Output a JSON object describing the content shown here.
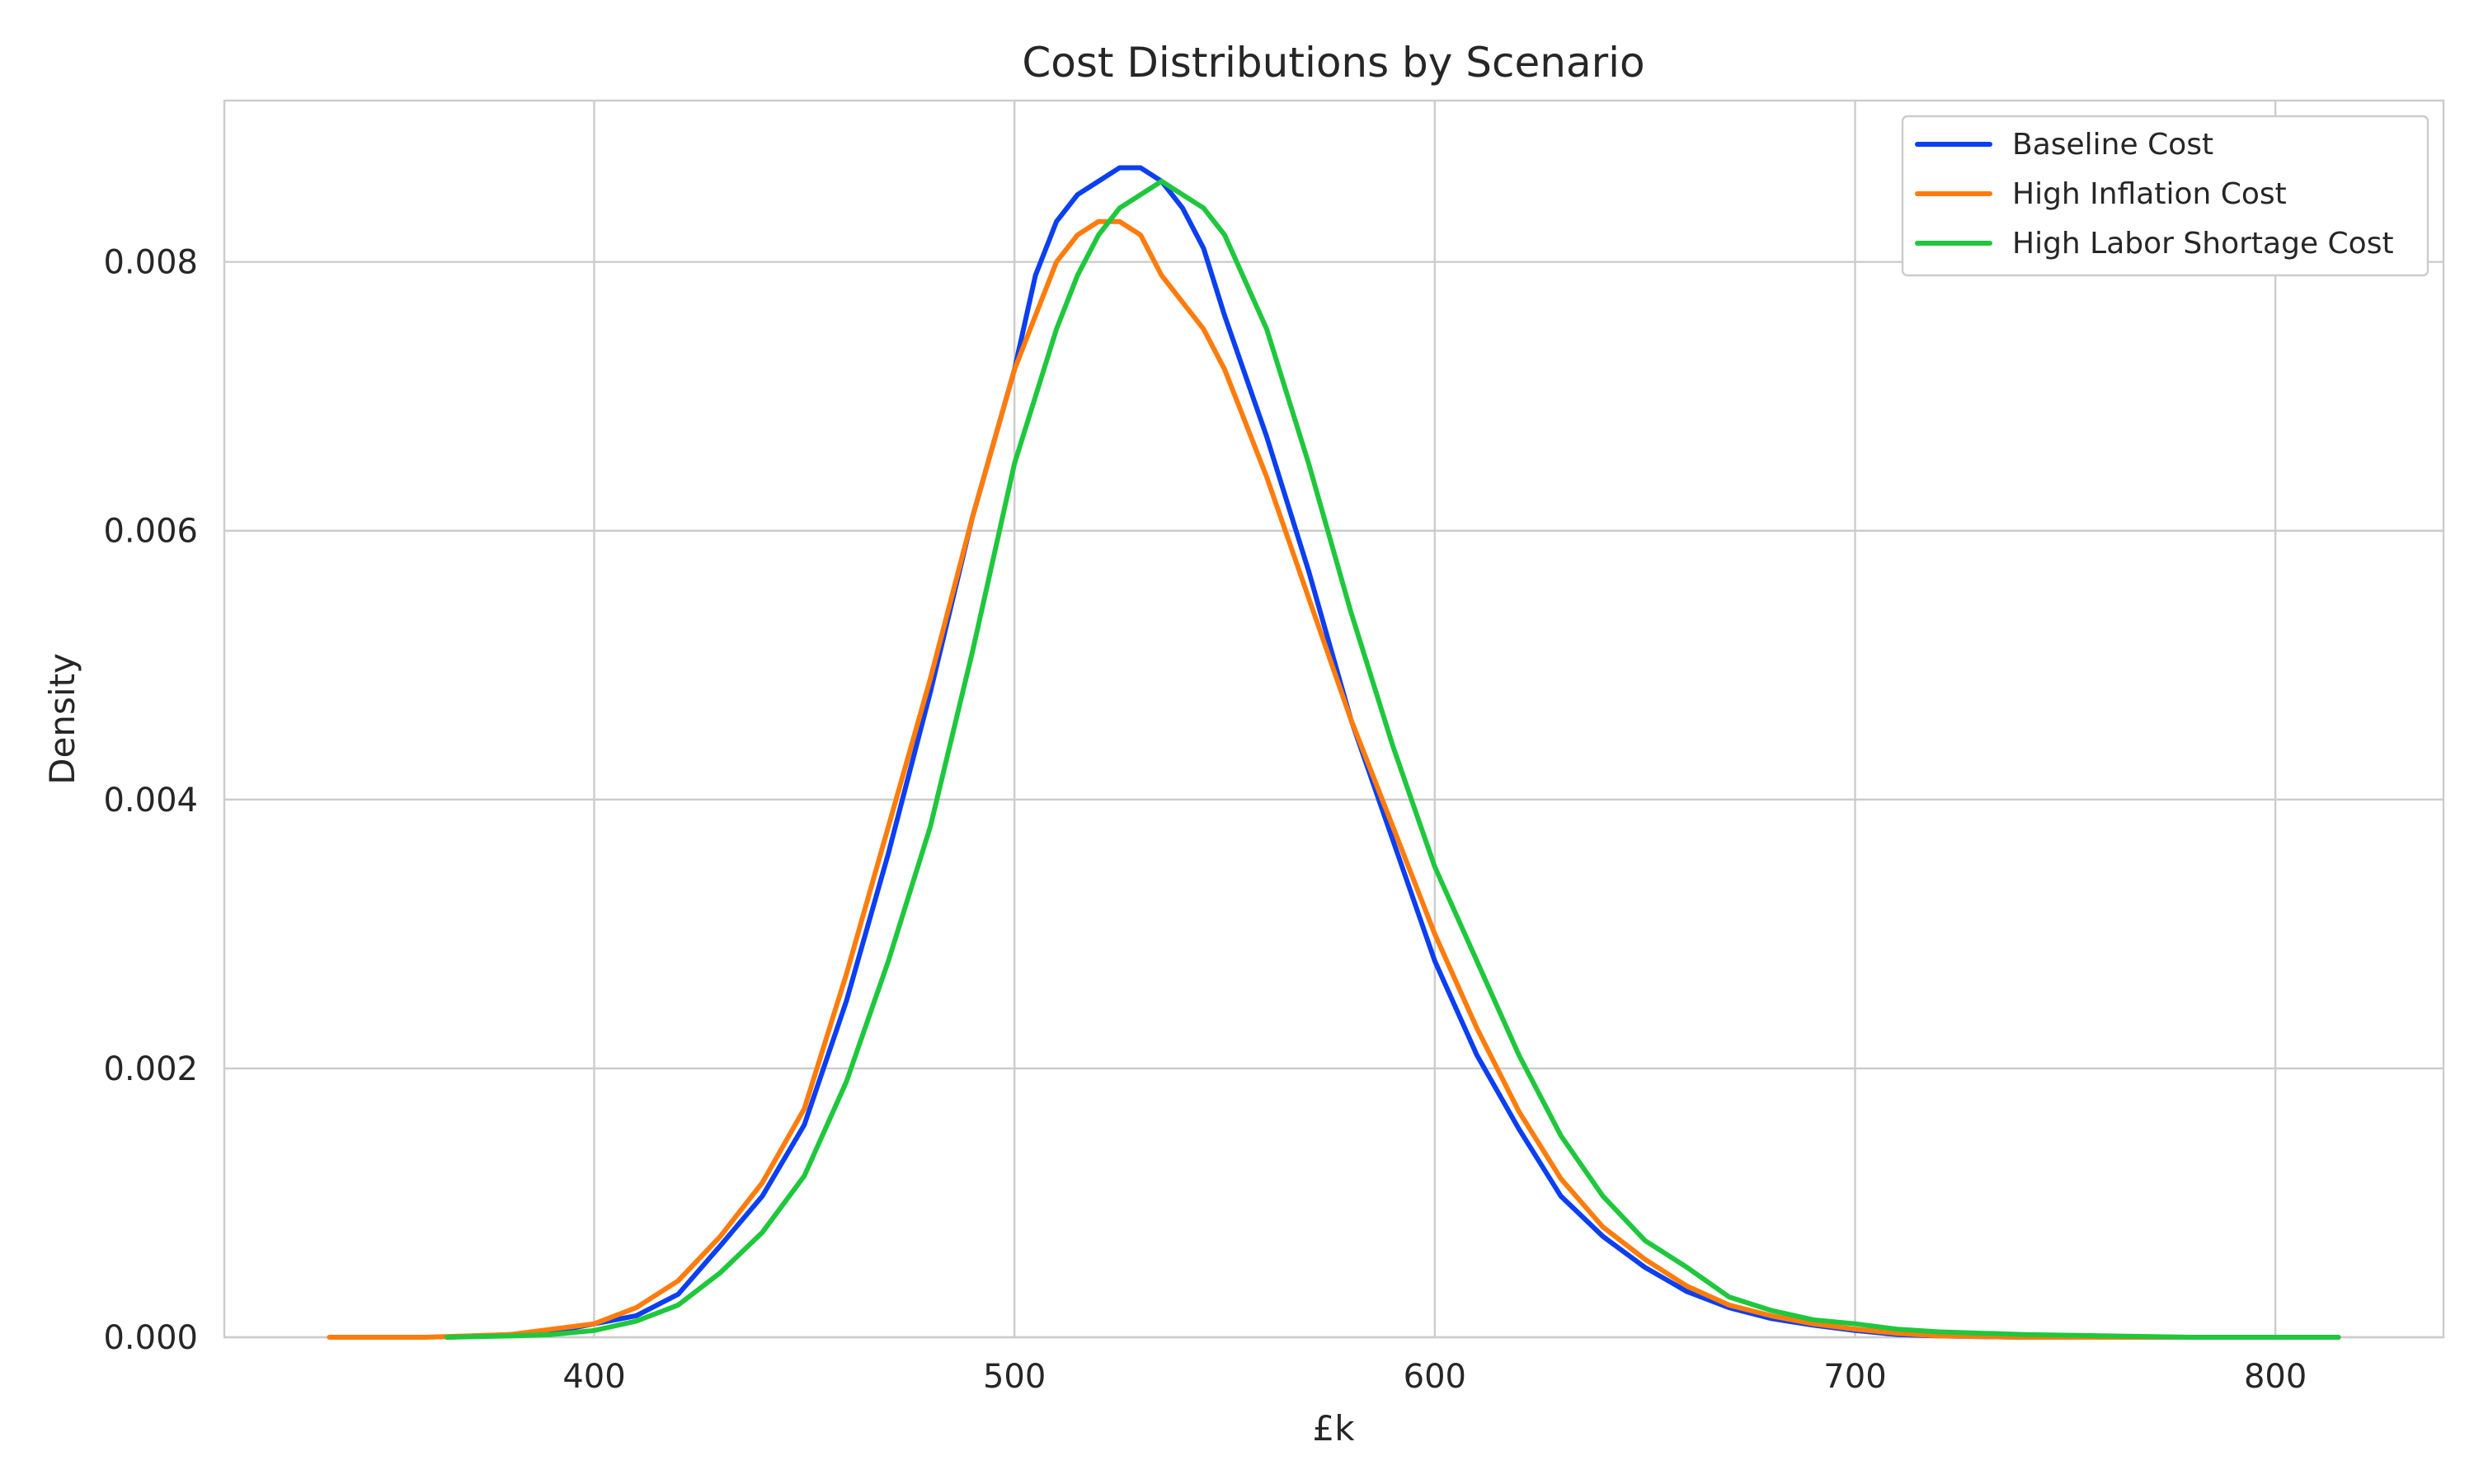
{
  "chart_data": {
    "type": "line",
    "title": "Cost Distributions by Scenario",
    "xlabel": "£k",
    "ylabel": "Density",
    "xlim": [
      312,
      840
    ],
    "ylim": [
      0,
      0.0092
    ],
    "xticks": [
      400,
      500,
      600,
      700,
      800
    ],
    "xtick_labels": [
      "400",
      "500",
      "600",
      "700",
      "800"
    ],
    "yticks": [
      0.0,
      0.002,
      0.004,
      0.006,
      0.008
    ],
    "ytick_labels": [
      "0.000",
      "0.002",
      "0.004",
      "0.006",
      "0.008"
    ],
    "grid": true,
    "legend_position": "top-right",
    "series": [
      {
        "name": "Baseline Cost",
        "color": "#0b3ff1",
        "x": [
          365,
          380,
          390,
          400,
          410,
          420,
          430,
          440,
          450,
          460,
          470,
          480,
          490,
          500,
          505,
          510,
          515,
          520,
          525,
          530,
          535,
          540,
          545,
          550,
          560,
          570,
          580,
          590,
          600,
          610,
          620,
          630,
          640,
          650,
          660,
          670,
          680,
          690,
          700,
          710,
          720,
          740,
          760,
          780,
          800,
          815
        ],
        "y": [
          0.0,
          2e-05,
          4e-05,
          0.0001,
          0.00016,
          0.00032,
          0.00068,
          0.00105,
          0.00158,
          0.0025,
          0.0036,
          0.0048,
          0.0061,
          0.0072,
          0.0079,
          0.0083,
          0.0085,
          0.0086,
          0.0087,
          0.0087,
          0.0086,
          0.0084,
          0.0081,
          0.0076,
          0.0067,
          0.0057,
          0.0046,
          0.0037,
          0.0028,
          0.0021,
          0.00155,
          0.00105,
          0.00075,
          0.00052,
          0.00034,
          0.00022,
          0.00014,
          9e-05,
          5e-05,
          2e-05,
          1e-05,
          0.0,
          0.0,
          0.0,
          0.0,
          0.0
        ]
      },
      {
        "name": "High Inflation Cost",
        "color": "#ff7c0c",
        "x": [
          337,
          360,
          380,
          390,
          400,
          410,
          420,
          430,
          440,
          450,
          460,
          470,
          480,
          490,
          500,
          505,
          510,
          515,
          520,
          525,
          530,
          535,
          540,
          545,
          550,
          560,
          570,
          580,
          590,
          600,
          610,
          620,
          630,
          640,
          650,
          660,
          670,
          680,
          690,
          700,
          710,
          720,
          740,
          760,
          780,
          800,
          815
        ],
        "y": [
          0.0,
          0.0,
          2e-05,
          6e-05,
          0.0001,
          0.00022,
          0.00042,
          0.00075,
          0.00115,
          0.0017,
          0.0027,
          0.0038,
          0.0049,
          0.0061,
          0.0072,
          0.0076,
          0.008,
          0.0082,
          0.0083,
          0.0083,
          0.0082,
          0.0079,
          0.0077,
          0.0075,
          0.0072,
          0.0064,
          0.0055,
          0.0046,
          0.0038,
          0.003,
          0.0023,
          0.00168,
          0.00118,
          0.00082,
          0.00058,
          0.00038,
          0.00024,
          0.00016,
          0.0001,
          6e-05,
          3e-05,
          1e-05,
          0.0,
          0.0,
          0.0,
          0.0,
          0.0
        ]
      },
      {
        "name": "High Labor Shortage Cost",
        "color": "#1fc73d",
        "x": [
          365,
          380,
          390,
          400,
          410,
          420,
          430,
          440,
          450,
          460,
          470,
          480,
          490,
          500,
          510,
          515,
          520,
          525,
          530,
          535,
          540,
          545,
          550,
          560,
          570,
          580,
          590,
          600,
          610,
          620,
          630,
          640,
          650,
          660,
          670,
          680,
          690,
          700,
          710,
          720,
          740,
          760,
          780,
          800,
          815
        ],
        "y": [
          0.0,
          1e-05,
          2e-05,
          5e-05,
          0.00012,
          0.00024,
          0.00048,
          0.00078,
          0.0012,
          0.0019,
          0.0028,
          0.0038,
          0.0051,
          0.0065,
          0.0075,
          0.0079,
          0.0082,
          0.0084,
          0.0085,
          0.0086,
          0.0085,
          0.0084,
          0.0082,
          0.0075,
          0.0065,
          0.0054,
          0.0044,
          0.0035,
          0.0028,
          0.0021,
          0.0015,
          0.00105,
          0.00072,
          0.00052,
          0.0003,
          0.0002,
          0.00013,
          0.0001,
          6e-05,
          4e-05,
          2e-05,
          1e-05,
          0.0,
          0.0,
          0.0
        ]
      }
    ]
  }
}
